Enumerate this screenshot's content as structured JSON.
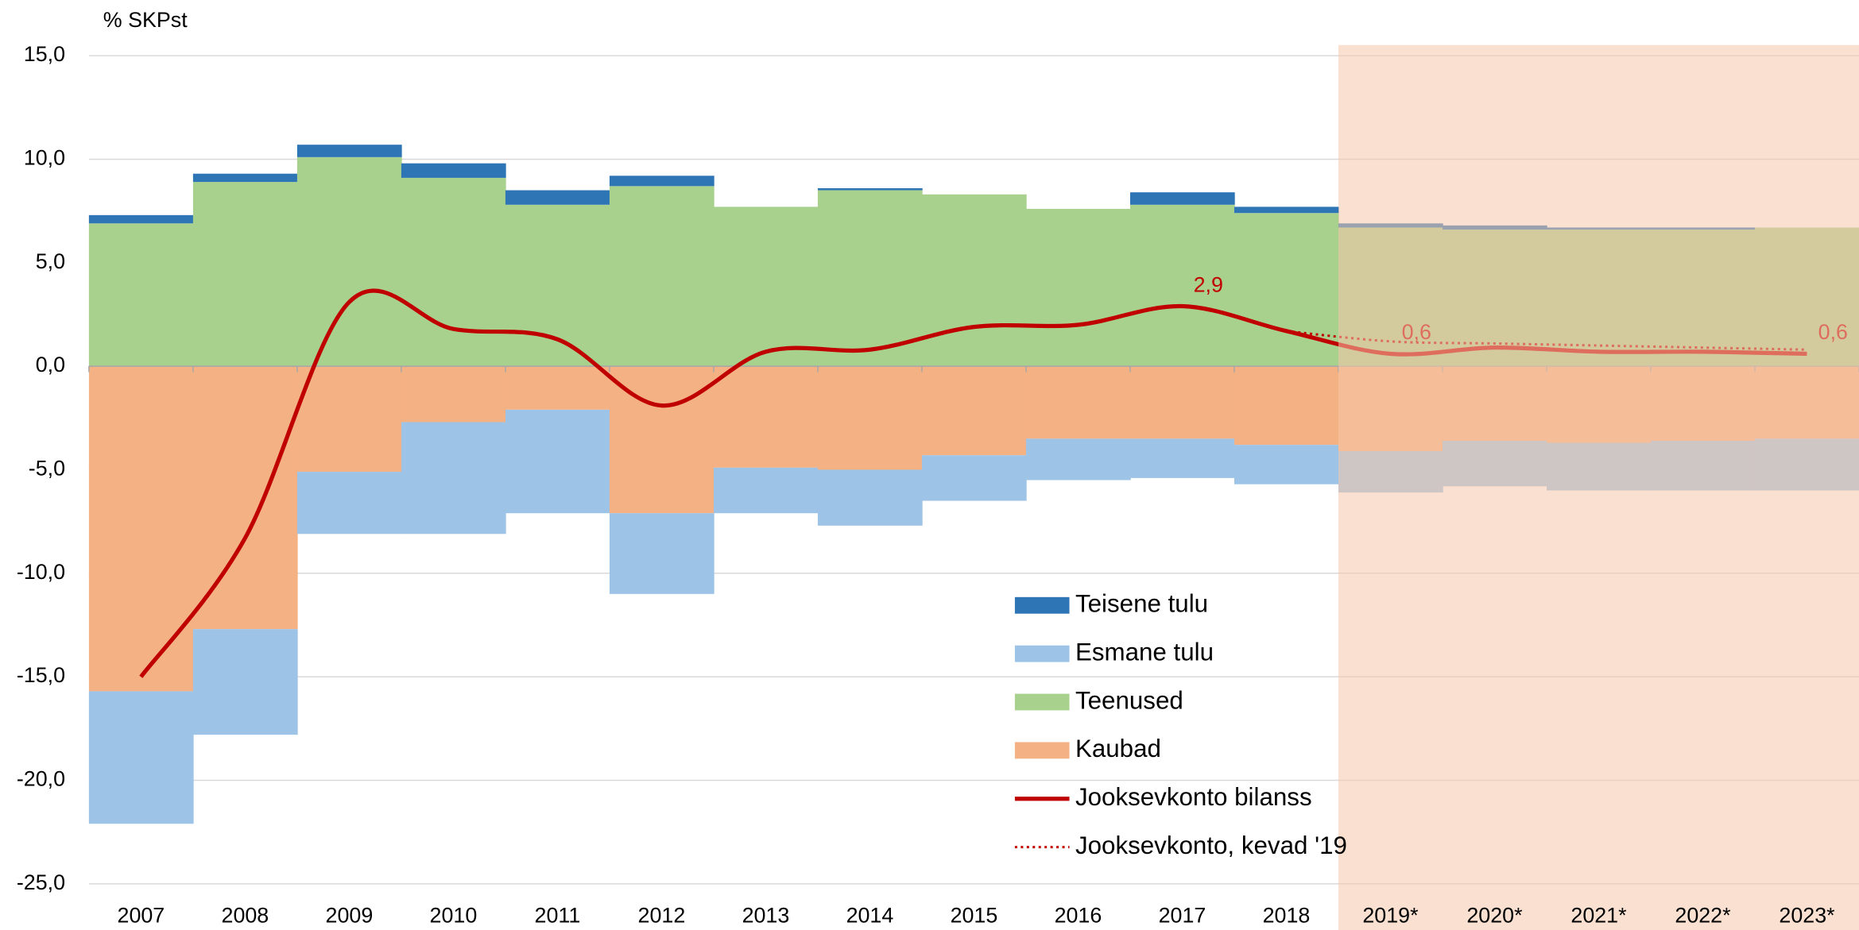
{
  "chart_data": {
    "type": "stacked_step_area_line",
    "y_unit": "% SKPst",
    "categories": [
      "2007",
      "2008",
      "2009",
      "2010",
      "2011",
      "2012",
      "2013",
      "2014",
      "2015",
      "2016",
      "2017",
      "2018",
      "2019*",
      "2020*",
      "2021*",
      "2022*",
      "2023*"
    ],
    "series": [
      {
        "name": "Teisene tulu",
        "color": "#2e75b6",
        "kind": "area",
        "values": [
          0.4,
          0.4,
          0.6,
          0.7,
          0.7,
          0.5,
          0,
          0.1,
          0,
          0,
          0.6,
          0.3,
          0.2,
          0.2,
          0.1,
          0.1,
          0
        ]
      },
      {
        "name": "Esmane tulu",
        "color": "#9dc3e6",
        "kind": "area",
        "values": [
          -6.4,
          -5.1,
          -3.0,
          -5.4,
          -5.0,
          -3.9,
          -2.2,
          -2.7,
          -2.2,
          -2.0,
          -1.9,
          -1.9,
          -2.0,
          -2.2,
          -2.3,
          -2.4,
          -2.5
        ]
      },
      {
        "name": "Teenused",
        "color": "#a9d18e",
        "kind": "area",
        "values": [
          6.9,
          8.9,
          10.1,
          9.1,
          7.8,
          8.7,
          7.7,
          8.5,
          8.3,
          7.6,
          7.8,
          7.4,
          6.7,
          6.6,
          6.6,
          6.6,
          6.7
        ]
      },
      {
        "name": "Kaubad",
        "color": "#f4b183",
        "kind": "area",
        "values": [
          -15.7,
          -12.7,
          -5.1,
          -2.7,
          -2.1,
          -7.1,
          -4.9,
          -5.0,
          -4.3,
          -3.5,
          -3.5,
          -3.8,
          -4.1,
          -3.6,
          -3.7,
          -3.6,
          -3.5
        ]
      },
      {
        "name": "Jooksevkonto bilanss",
        "color": "#c00000",
        "kind": "line",
        "values": [
          -15.0,
          -8.3,
          3.1,
          1.8,
          1.3,
          -1.9,
          0.7,
          0.8,
          1.9,
          2.0,
          2.9,
          1.7,
          0.6,
          0.9,
          0.7,
          0.7,
          0.6
        ],
        "value_labels": [
          null,
          null,
          null,
          null,
          null,
          null,
          null,
          null,
          null,
          null,
          "2,9",
          null,
          "0,6",
          null,
          null,
          null,
          "0,6"
        ]
      },
      {
        "name": "Jooksevkonto, kevad '19",
        "color": "#c00000",
        "kind": "dotted",
        "values": [
          null,
          null,
          null,
          null,
          null,
          null,
          null,
          null,
          null,
          null,
          null,
          1.7,
          1.2,
          1.1,
          1.0,
          0.9,
          0.8
        ]
      }
    ],
    "ylim": [
      -25,
      15
    ],
    "yticks": [
      {
        "value": -25,
        "label": "-25,0"
      },
      {
        "value": -20,
        "label": "-20,0"
      },
      {
        "value": -15,
        "label": "-15,0"
      },
      {
        "value": -10,
        "label": "-10,0"
      },
      {
        "value": -5,
        "label": "-5,0"
      },
      {
        "value": 0,
        "label": "0,0"
      },
      {
        "value": 5,
        "label": "5,0"
      },
      {
        "value": 10,
        "label": "10,0"
      },
      {
        "value": 15,
        "label": "15,0"
      }
    ],
    "grid": true,
    "forecast_start": "2019*",
    "forecast_color": "#f6c6aa"
  }
}
